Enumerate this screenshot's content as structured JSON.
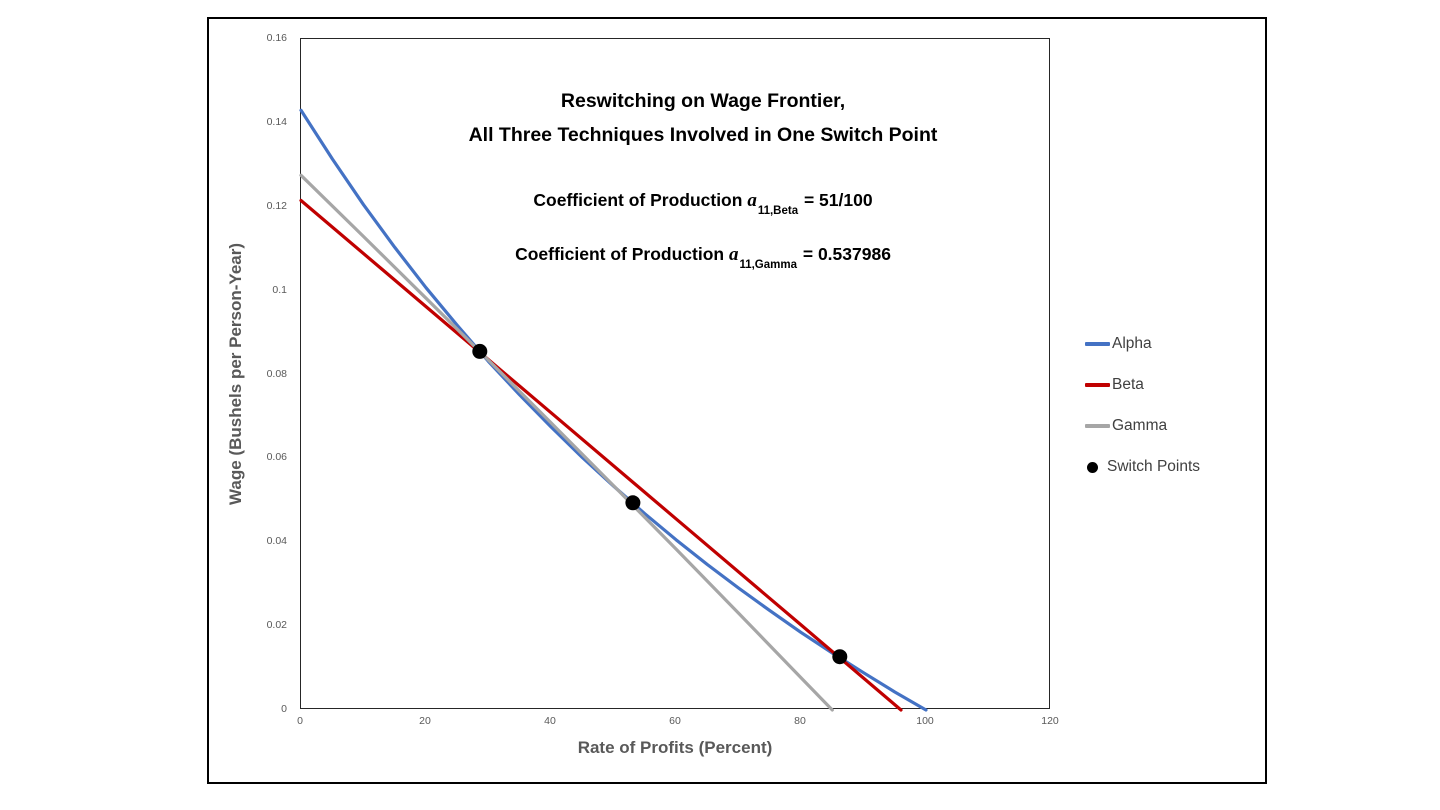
{
  "window": {
    "background": "#ffffff",
    "frame_border_color": "#000000"
  },
  "chart_data": {
    "type": "line",
    "title": "Reswitching on Wage Frontier, All Three Techniques Involved in One Switch Point",
    "title_lines": [
      "Reswitching on Wage Frontier,",
      "All Three Techniques Involved in One Switch Point"
    ],
    "annotations": [
      {
        "prefix": "Coefficient of Production ",
        "var": "a",
        "sub": "11,Beta",
        "rest": " = 51/100"
      },
      {
        "prefix": "Coefficient of Production ",
        "var": "a",
        "sub": "11,Gamma",
        "rest": " = 0.537986"
      }
    ],
    "xlabel": "Rate of Profits (Percent)",
    "ylabel": "Wage (Bushels per Person-Year)",
    "xlim": [
      0,
      120
    ],
    "ylim": [
      0,
      0.16
    ],
    "x_ticks": [
      "0",
      "20",
      "40",
      "60",
      "80",
      "100",
      "120"
    ],
    "y_ticks": [
      "0",
      "0.02",
      "0.04",
      "0.06",
      "0.08",
      "0.1",
      "0.12",
      "0.14",
      "0.16"
    ],
    "grid": false,
    "legend_position": "right-outside",
    "series": [
      {
        "name": "Alpha",
        "color": "#4472C4",
        "points": [
          [
            0,
            0.143
          ],
          [
            5,
            0.1314
          ],
          [
            10,
            0.1205
          ],
          [
            15,
            0.1103
          ],
          [
            20,
            0.1007
          ],
          [
            25,
            0.0917
          ],
          [
            30,
            0.0831
          ],
          [
            35,
            0.0751
          ],
          [
            40,
            0.0675
          ],
          [
            45,
            0.0602
          ],
          [
            50,
            0.0534
          ],
          [
            55,
            0.0468
          ],
          [
            60,
            0.0406
          ],
          [
            65,
            0.0347
          ],
          [
            70,
            0.0291
          ],
          [
            75,
            0.0237
          ],
          [
            80,
            0.0185
          ],
          [
            85,
            0.0136
          ],
          [
            90,
            0.0089
          ],
          [
            95,
            0.0043
          ],
          [
            100,
            0
          ]
        ]
      },
      {
        "name": "Beta",
        "color": "#C00000",
        "points": [
          [
            0,
            0.1215
          ],
          [
            20,
            0.0962
          ],
          [
            40,
            0.0709
          ],
          [
            60,
            0.0456
          ],
          [
            80,
            0.0203
          ],
          [
            96,
            0
          ]
        ]
      },
      {
        "name": "Gamma",
        "color": "#A6A6A6",
        "points": [
          [
            0,
            0.1275
          ],
          [
            10,
            0.1129
          ],
          [
            20,
            0.0982
          ],
          [
            30,
            0.0834
          ],
          [
            40,
            0.0685
          ],
          [
            50,
            0.0535
          ],
          [
            60,
            0.0384
          ],
          [
            70,
            0.0231
          ],
          [
            80,
            0.0077
          ],
          [
            85,
            0
          ]
        ]
      }
    ],
    "switch_points": {
      "name": "Switch Points",
      "color": "#000000",
      "points": [
        [
          28.6,
          0.0855
        ],
        [
          53.1,
          0.0494
        ],
        [
          86.2,
          0.0127
        ]
      ]
    },
    "legend": [
      {
        "label": "Alpha",
        "marker": "line",
        "color": "#4472C4"
      },
      {
        "label": "Beta",
        "marker": "line",
        "color": "#C00000"
      },
      {
        "label": "Gamma",
        "marker": "line",
        "color": "#A6A6A6"
      },
      {
        "label": "Switch Points",
        "marker": "dot",
        "color": "#000000"
      }
    ],
    "text_colors": {
      "axis_text": "#595959",
      "legend_text": "#404040",
      "title_text": "#000000"
    }
  }
}
